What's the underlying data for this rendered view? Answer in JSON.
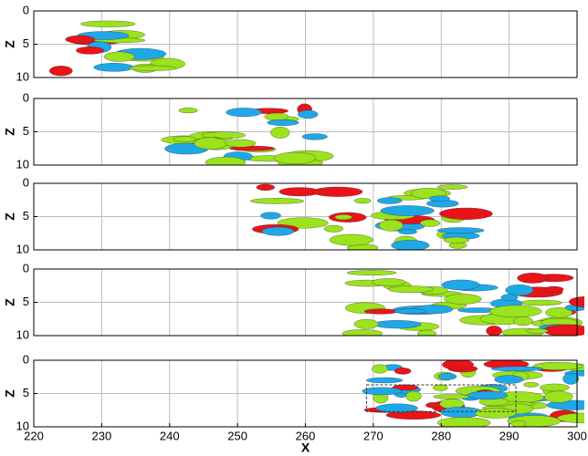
{
  "chart_data": [
    {
      "type": "isosurface",
      "ylabel": "Z",
      "xlim": [
        220,
        300
      ],
      "xticks": [
        220,
        230,
        240,
        250,
        260,
        270,
        280,
        290,
        300
      ],
      "ylim": [
        0,
        10
      ],
      "yticks": [
        0,
        5,
        10
      ],
      "y_inverted": true,
      "grid": true,
      "xtick_labels": false
    },
    {
      "type": "isosurface",
      "ylabel": "Z",
      "xlim": [
        220,
        300
      ],
      "xticks": [
        220,
        230,
        240,
        250,
        260,
        270,
        280,
        290,
        300
      ],
      "ylim": [
        0,
        10
      ],
      "yticks": [
        0,
        5,
        10
      ],
      "y_inverted": true,
      "grid": true,
      "xtick_labels": false
    },
    {
      "type": "isosurface",
      "ylabel": "Z",
      "xlim": [
        220,
        300
      ],
      "xticks": [
        220,
        230,
        240,
        250,
        260,
        270,
        280,
        290,
        300
      ],
      "ylim": [
        0,
        10
      ],
      "yticks": [
        0,
        5,
        10
      ],
      "y_inverted": true,
      "grid": true,
      "xtick_labels": false
    },
    {
      "type": "isosurface",
      "ylabel": "Z",
      "xlim": [
        220,
        300
      ],
      "xticks": [
        220,
        230,
        240,
        250,
        260,
        270,
        280,
        290,
        300
      ],
      "ylim": [
        0,
        10
      ],
      "yticks": [
        0,
        5,
        10
      ],
      "y_inverted": true,
      "grid": true,
      "xtick_labels": false
    },
    {
      "type": "isosurface",
      "ylabel": "Z",
      "xlabel": "X",
      "xlim": [
        220,
        300
      ],
      "xticks": [
        220,
        230,
        240,
        250,
        260,
        270,
        280,
        290,
        300
      ],
      "ylim": [
        0,
        10
      ],
      "yticks": [
        0,
        5,
        10
      ],
      "y_inverted": true,
      "grid": true,
      "xtick_labels": true
    }
  ]
}
